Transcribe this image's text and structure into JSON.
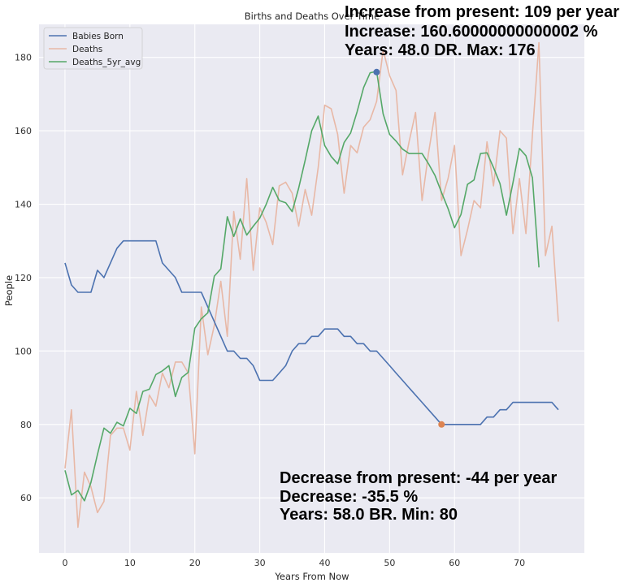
{
  "chart_data": {
    "type": "line",
    "title": "Births and Deaths Over Time",
    "xlabel": "Years From Now",
    "ylabel": "People",
    "xlim": [
      -4,
      80
    ],
    "ylim": [
      45,
      189
    ],
    "xticks": [
      0,
      10,
      20,
      30,
      40,
      50,
      60,
      70
    ],
    "yticks": [
      60,
      80,
      100,
      120,
      140,
      160,
      180
    ],
    "grid": true,
    "legend_position": "top-left",
    "series": [
      {
        "name": "Babies Born",
        "color": "#4c72b0",
        "x": [
          0,
          1,
          2,
          3,
          4,
          5,
          6,
          7,
          8,
          9,
          10,
          11,
          12,
          13,
          14,
          15,
          16,
          17,
          18,
          19,
          20,
          21,
          22,
          23,
          24,
          25,
          26,
          27,
          28,
          29,
          30,
          31,
          32,
          33,
          34,
          35,
          36,
          37,
          38,
          39,
          40,
          41,
          42,
          43,
          44,
          45,
          46,
          47,
          48,
          49,
          50,
          51,
          52,
          53,
          54,
          55,
          56,
          57,
          58,
          59,
          60,
          61,
          62,
          63,
          64,
          65,
          66,
          67,
          68,
          69,
          70,
          71,
          72,
          73,
          74,
          75,
          76
        ],
        "values": [
          124,
          118,
          116,
          116,
          116,
          122,
          120,
          124,
          128,
          130,
          130,
          130,
          130,
          130,
          130,
          124,
          122,
          120,
          116,
          116,
          116,
          116,
          112,
          108,
          104,
          100,
          100,
          98,
          98,
          96,
          92,
          92,
          92,
          94,
          96,
          100,
          102,
          102,
          104,
          104,
          106,
          106,
          106,
          104,
          104,
          102,
          102,
          100,
          100,
          98,
          96,
          94,
          92,
          90,
          88,
          86,
          84,
          82,
          80,
          80,
          80,
          80,
          80,
          80,
          80,
          82,
          82,
          84,
          84,
          86,
          86,
          86,
          86,
          86,
          86,
          86,
          84
        ]
      },
      {
        "name": "Deaths",
        "color": "#e8b8a6",
        "x": [
          0,
          1,
          2,
          3,
          4,
          5,
          6,
          7,
          8,
          9,
          10,
          11,
          12,
          13,
          14,
          15,
          16,
          17,
          18,
          19,
          20,
          21,
          22,
          23,
          24,
          25,
          26,
          27,
          28,
          29,
          30,
          31,
          32,
          33,
          34,
          35,
          36,
          37,
          38,
          39,
          40,
          41,
          42,
          43,
          44,
          45,
          46,
          47,
          48,
          49,
          50,
          51,
          52,
          53,
          54,
          55,
          56,
          57,
          58,
          59,
          60,
          61,
          62,
          63,
          64,
          65,
          66,
          67,
          68,
          69,
          70,
          71,
          72,
          73,
          74,
          75,
          76
        ],
        "values": [
          68,
          84,
          52,
          67,
          63,
          56,
          59,
          77,
          79,
          79,
          73,
          89,
          77,
          88,
          85,
          94,
          90,
          97,
          97,
          94,
          72,
          112,
          99,
          107,
          119,
          104,
          138,
          125,
          147,
          122,
          139,
          135,
          129,
          145,
          146,
          143,
          134,
          144,
          137,
          150,
          167,
          166,
          159,
          143,
          156,
          154,
          161,
          163,
          168,
          182,
          175,
          171,
          148,
          157,
          165,
          141,
          154,
          165,
          141,
          147,
          156,
          126,
          133,
          141,
          139,
          157,
          145,
          160,
          158,
          132,
          147,
          132,
          159,
          184,
          126,
          134,
          108
        ]
      },
      {
        "name": "Deaths_5yr_avg",
        "color": "#55a868",
        "x": [
          0,
          1,
          2,
          3,
          4,
          5,
          6,
          7,
          8,
          9,
          10,
          11,
          12,
          13,
          14,
          15,
          16,
          17,
          18,
          19,
          20,
          21,
          22,
          23,
          24,
          25,
          26,
          27,
          28,
          29,
          30,
          31,
          32,
          33,
          34,
          35,
          36,
          37,
          38,
          39,
          40,
          41,
          42,
          43,
          44,
          45,
          46,
          47,
          48,
          49,
          50,
          51,
          52,
          53,
          54,
          55,
          56,
          57,
          58,
          59,
          60,
          61,
          62,
          63,
          64,
          65,
          66,
          67,
          68,
          69,
          70,
          71,
          72,
          73
        ],
        "values": [
          67.5,
          60.8,
          62.0,
          59.2,
          64.2,
          71.8,
          79.0,
          77.6,
          80.6,
          79.6,
          84.4,
          83.0,
          89.0,
          89.6,
          93.6,
          94.6,
          96.0,
          87.6,
          92.8,
          94.2,
          106.2,
          108.8,
          110.4,
          120.4,
          122.4,
          136.6,
          131.2,
          136.0,
          131.6,
          134.0,
          136.2,
          140.0,
          144.6,
          141.0,
          140.4,
          138.0,
          144.4,
          152.0,
          160.0,
          164.0,
          156.0,
          153.0,
          151.0,
          156.8,
          159.4,
          165.2,
          171.8,
          175.8,
          176.2,
          164.6,
          159.0,
          157.2,
          155.0,
          153.8,
          153.8,
          153.8,
          151.0,
          147.8,
          143.2,
          138.8,
          133.6,
          137.2,
          145.4,
          146.6,
          153.8,
          154.0,
          150.0,
          145.6,
          137.0,
          145.8,
          155.2,
          153.2,
          147.2,
          122.8
        ]
      }
    ],
    "markers": [
      {
        "name": "deaths-max-marker",
        "x": 48,
        "y": 176,
        "color": "#4c72b0"
      },
      {
        "name": "births-min-marker",
        "x": 58,
        "y": 80,
        "color": "#dd8452"
      }
    ],
    "annotations": {
      "increase": [
        "Increase from present: 109 per year",
        "Increase: 160.60000000000002 %",
        "Years: 48.0  DR. Max: 176"
      ],
      "decrease": [
        "Decrease from present: -44 per year",
        "Decrease: -35.5 %",
        "Years: 58.0  BR. Min: 80"
      ]
    }
  }
}
